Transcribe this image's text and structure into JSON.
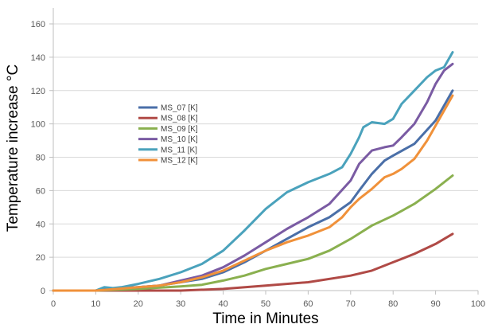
{
  "chart_data": {
    "type": "line",
    "xlabel": "Time in Minutes",
    "ylabel": "Temperature increase °C",
    "xlim": [
      0,
      100
    ],
    "ylim": [
      0,
      160
    ],
    "xticks": [
      0,
      10,
      20,
      30,
      40,
      50,
      60,
      70,
      80,
      90,
      100
    ],
    "yticks": [
      0,
      20,
      40,
      60,
      80,
      100,
      120,
      140,
      160
    ],
    "grid": "horizontal",
    "legend_position": "center-left",
    "series": [
      {
        "name": "MS_07 [K]",
        "color": "#4a6fa8",
        "x": [
          0,
          10,
          12,
          16,
          20,
          25,
          30,
          35,
          40,
          45,
          50,
          55,
          60,
          65,
          70,
          72,
          75,
          78,
          80,
          85,
          90,
          94
        ],
        "y": [
          0,
          0,
          1,
          1.5,
          2,
          3,
          5,
          7,
          11,
          17,
          24,
          31,
          38,
          44,
          53,
          60,
          70,
          78,
          81,
          88,
          102,
          120
        ]
      },
      {
        "name": "MS_08 [K]",
        "color": "#b04a46",
        "x": [
          0,
          30,
          40,
          50,
          60,
          70,
          75,
          80,
          85,
          90,
          94
        ],
        "y": [
          0,
          0,
          1,
          3,
          5,
          9,
          12,
          17,
          22,
          28,
          34
        ]
      },
      {
        "name": "MS_09 [K]",
        "color": "#8ab04f",
        "x": [
          0,
          10,
          20,
          30,
          35,
          40,
          45,
          50,
          55,
          60,
          65,
          70,
          75,
          80,
          85,
          90,
          94
        ],
        "y": [
          0,
          0,
          1,
          2.5,
          3.5,
          6,
          9,
          13,
          16,
          19,
          24,
          31,
          39,
          45,
          52,
          61,
          69
        ]
      },
      {
        "name": "MS_10 [K]",
        "color": "#7a5ba3",
        "x": [
          0,
          10,
          12,
          16,
          20,
          25,
          30,
          35,
          40,
          45,
          50,
          55,
          60,
          65,
          70,
          72,
          75,
          78,
          80,
          82,
          85,
          88,
          90,
          92,
          94
        ],
        "y": [
          0,
          0,
          1,
          1.5,
          2,
          3,
          6,
          9,
          14,
          21,
          29,
          37,
          44,
          52,
          66,
          76,
          84,
          86,
          87,
          92,
          100,
          113,
          124,
          132,
          136
        ]
      },
      {
        "name": "MS_11 [K]",
        "color": "#4aa2bc",
        "x": [
          0,
          10,
          12,
          14,
          16,
          20,
          25,
          30,
          35,
          40,
          45,
          50,
          55,
          60,
          65,
          68,
          70,
          72,
          73,
          75,
          78,
          80,
          82,
          85,
          88,
          90,
          92,
          94
        ],
        "y": [
          0,
          0,
          2,
          1.5,
          2,
          4,
          7,
          11,
          16,
          24,
          36,
          49,
          59,
          65,
          70,
          74,
          82,
          92,
          98,
          101,
          100,
          103,
          112,
          120,
          128,
          132,
          134,
          143
        ]
      },
      {
        "name": "MS_12 [K]",
        "color": "#f0913a",
        "x": [
          0,
          10,
          20,
          25,
          30,
          35,
          40,
          45,
          50,
          55,
          60,
          65,
          68,
          70,
          72,
          75,
          78,
          80,
          82,
          85,
          88,
          90,
          92,
          94
        ],
        "y": [
          0,
          0,
          2,
          3,
          5,
          8,
          12,
          18,
          24,
          29,
          33,
          38,
          44,
          50,
          55,
          61,
          68,
          70,
          73,
          79,
          90,
          99,
          108,
          117
        ]
      }
    ]
  }
}
